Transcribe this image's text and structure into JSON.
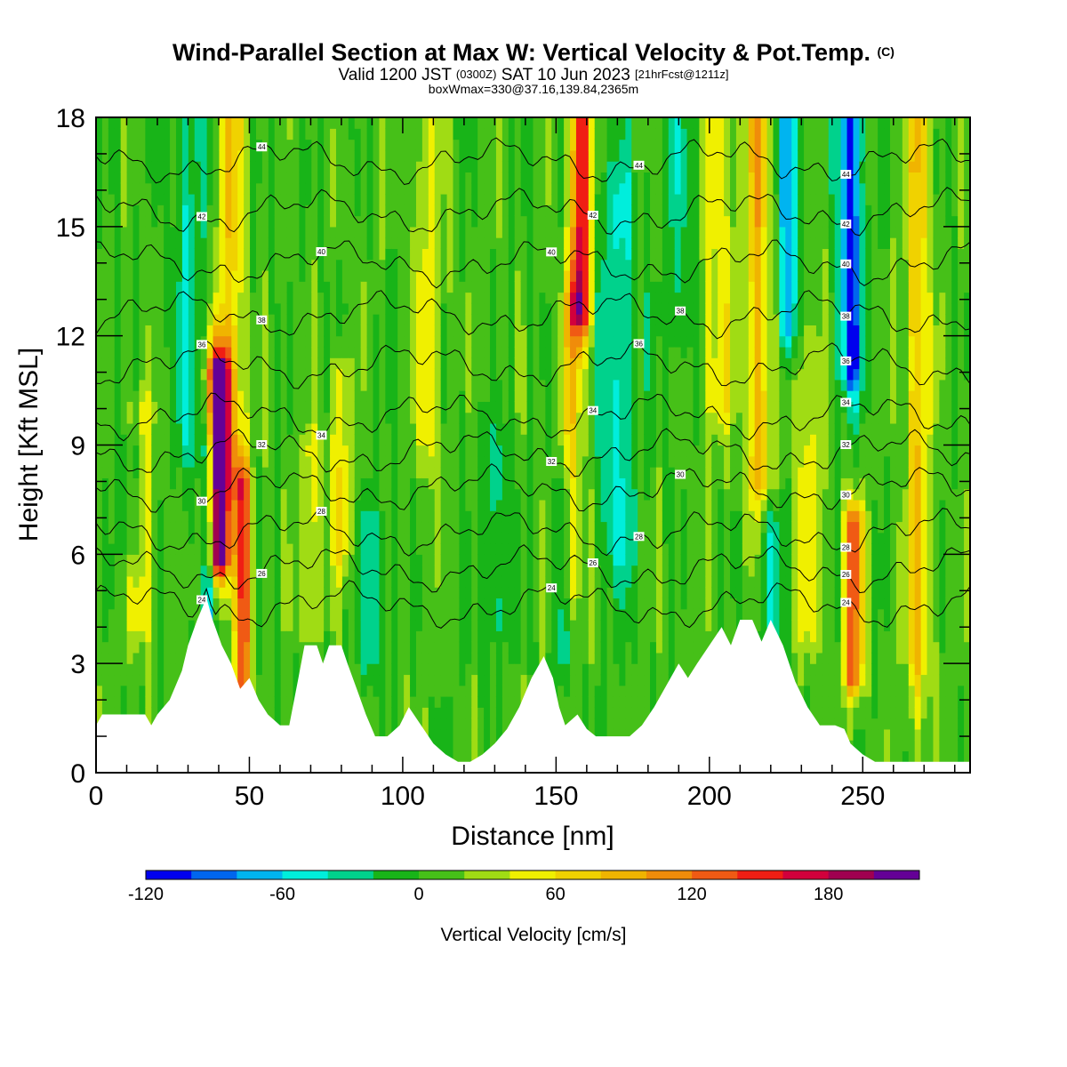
{
  "header": {
    "title_main": "Wind-Parallel Section at Max W: Vertical Velocity & Pot.Temp.",
    "title_mark": "(C)",
    "valid_prefix": "Valid 1200 JST",
    "valid_utc": "(0300Z)",
    "valid_date": "SAT 10 Jun 2023",
    "valid_fcst": "[21hrFcst@1211z]",
    "box_info": "boxWmax=330@37.16,139.84,2365m"
  },
  "chart_data": {
    "type": "heatmap",
    "xlabel": "Distance [nm]",
    "ylabel": "Height [Kft MSL]",
    "xlim": [
      0,
      285
    ],
    "ylim": [
      0,
      18
    ],
    "x_ticks": [
      0,
      50,
      100,
      150,
      200,
      250
    ],
    "y_ticks": [
      0,
      3,
      6,
      9,
      12,
      15,
      18
    ],
    "colorbar": {
      "title": "Vertical Velocity [cm/s]",
      "levels": [
        -120,
        -100,
        -80,
        -60,
        -40,
        -20,
        0,
        20,
        40,
        60,
        80,
        100,
        120,
        140,
        160,
        180,
        200,
        220
      ],
      "tick_values": [
        -120,
        -60,
        0,
        60,
        120,
        180
      ],
      "tick_labels": [
        "-120",
        "-60",
        "0",
        "60",
        "120",
        "180"
      ],
      "colors": [
        "#0000ee",
        "#0066ee",
        "#00b4f0",
        "#00eedc",
        "#00d28c",
        "#18b418",
        "#46c018",
        "#a0dc14",
        "#f0f000",
        "#f0d200",
        "#f0b400",
        "#f08c0a",
        "#f05a14",
        "#f01e14",
        "#d2003c",
        "#a00050",
        "#640096"
      ]
    },
    "terrain": [
      [
        0,
        1.3
      ],
      [
        2,
        1.6
      ],
      [
        16,
        1.6
      ],
      [
        18,
        1.3
      ],
      [
        20,
        1.6
      ],
      [
        24,
        2.0
      ],
      [
        28,
        2.8
      ],
      [
        30,
        3.5
      ],
      [
        33,
        4.2
      ],
      [
        36,
        4.8
      ],
      [
        38,
        4.2
      ],
      [
        41,
        3.5
      ],
      [
        44,
        3.0
      ],
      [
        47,
        2.3
      ],
      [
        50,
        2.6
      ],
      [
        53,
        2.0
      ],
      [
        56,
        1.6
      ],
      [
        60,
        1.3
      ],
      [
        63,
        1.3
      ],
      [
        66,
        2.6
      ],
      [
        68,
        3.5
      ],
      [
        72,
        3.5
      ],
      [
        74,
        3.0
      ],
      [
        76,
        3.5
      ],
      [
        80,
        3.5
      ],
      [
        82,
        3.0
      ],
      [
        85,
        2.3
      ],
      [
        88,
        1.6
      ],
      [
        91,
        1.0
      ],
      [
        95,
        1.0
      ],
      [
        99,
        1.3
      ],
      [
        102,
        1.8
      ],
      [
        106,
        1.3
      ],
      [
        110,
        0.8
      ],
      [
        114,
        0.5
      ],
      [
        118,
        0.3
      ],
      [
        122,
        0.3
      ],
      [
        126,
        0.5
      ],
      [
        130,
        0.8
      ],
      [
        134,
        1.2
      ],
      [
        138,
        1.8
      ],
      [
        142,
        2.6
      ],
      [
        146,
        3.2
      ],
      [
        149,
        2.6
      ],
      [
        151,
        1.8
      ],
      [
        153,
        1.3
      ],
      [
        157,
        1.6
      ],
      [
        160,
        1.2
      ],
      [
        163,
        1.0
      ],
      [
        168,
        1.0
      ],
      [
        174,
        1.0
      ],
      [
        178,
        1.3
      ],
      [
        182,
        1.8
      ],
      [
        186,
        2.4
      ],
      [
        190,
        3.0
      ],
      [
        193,
        2.6
      ],
      [
        196,
        3.0
      ],
      [
        200,
        3.5
      ],
      [
        204,
        4.0
      ],
      [
        207,
        3.5
      ],
      [
        210,
        4.2
      ],
      [
        214,
        4.2
      ],
      [
        217,
        3.6
      ],
      [
        220,
        4.2
      ],
      [
        224,
        3.5
      ],
      [
        226,
        3.0
      ],
      [
        228,
        2.5
      ],
      [
        232,
        1.8
      ],
      [
        236,
        1.3
      ],
      [
        241,
        1.3
      ],
      [
        244,
        1.2
      ],
      [
        246,
        0.8
      ],
      [
        250,
        0.5
      ],
      [
        254,
        0.3
      ],
      [
        260,
        0.3
      ],
      [
        266,
        0.3
      ],
      [
        272,
        0.3
      ],
      [
        278,
        0.3
      ],
      [
        285,
        0.3
      ]
    ],
    "contours": [
      {
        "label": "24",
        "y0": 4.6,
        "phase": 0.5
      },
      {
        "label": "26",
        "y0": 5.6,
        "phase": 1.2
      },
      {
        "label": "28",
        "y0": 6.6,
        "phase": 2.0
      },
      {
        "label": "30",
        "y0": 7.8,
        "phase": 2.7
      },
      {
        "label": "32",
        "y0": 8.8,
        "phase": 3.3
      },
      {
        "label": "34",
        "y0": 9.8,
        "phase": 4.1
      },
      {
        "label": "36",
        "y0": 11.2,
        "phase": 4.8
      },
      {
        "label": "38",
        "y0": 12.6,
        "phase": 5.5
      },
      {
        "label": "40",
        "y0": 14.0,
        "phase": 0.9
      },
      {
        "label": "42",
        "y0": 15.4,
        "phase": 1.6
      },
      {
        "label": "44",
        "y0": 16.8,
        "phase": 2.3
      }
    ],
    "updrafts": [
      {
        "x": 40,
        "w": 3.5,
        "amp": 220,
        "y0": 5.8,
        "y1": 11.2
      },
      {
        "x": 48,
        "w": 2.5,
        "amp": 140,
        "y0": 2.0,
        "y1": 8.0
      },
      {
        "x": 44,
        "w": 4,
        "amp": 70,
        "y0": 8.0,
        "y1": 18.0
      },
      {
        "x": 158,
        "w": 3.0,
        "amp": 170,
        "y0": 12.5,
        "y1": 18.0
      },
      {
        "x": 155,
        "w": 4,
        "amp": 60,
        "y0": 5.0,
        "y1": 13.0
      },
      {
        "x": 247,
        "w": 3.0,
        "amp": 130,
        "y0": 2.5,
        "y1": 7.0
      },
      {
        "x": 216,
        "w": 4,
        "amp": 80,
        "y0": 8.0,
        "y1": 18.0
      },
      {
        "x": 203,
        "w": 5,
        "amp": 50,
        "y0": 10.0,
        "y1": 18.0
      },
      {
        "x": 80,
        "w": 3,
        "amp": 55,
        "y0": 6.0,
        "y1": 11.0
      },
      {
        "x": 268,
        "w": 4,
        "amp": 70,
        "y0": 3.0,
        "y1": 18.0
      },
      {
        "x": 15,
        "w": 4,
        "amp": 45,
        "y0": 4.0,
        "y1": 10.0
      },
      {
        "x": 70,
        "w": 4,
        "amp": 40,
        "y0": 4.0,
        "y1": 9.0
      },
      {
        "x": 108,
        "w": 5,
        "amp": 40,
        "y0": 9.0,
        "y1": 18.0
      },
      {
        "x": 232,
        "w": 5,
        "amp": 40,
        "y0": 4.0,
        "y1": 12.0
      }
    ],
    "downdrafts": [
      {
        "x": 246,
        "w": 3.5,
        "amp": -120,
        "y0": 11.0,
        "y1": 18.0
      },
      {
        "x": 226,
        "w": 3.5,
        "amp": -80,
        "y0": 12.0,
        "y1": 18.0
      },
      {
        "x": 37,
        "w": 3.0,
        "amp": -60,
        "y0": 3.5,
        "y1": 9.0
      },
      {
        "x": 170,
        "w": 6,
        "amp": -50,
        "y0": 6.0,
        "y1": 16.0
      },
      {
        "x": 30,
        "w": 5,
        "amp": -40,
        "y0": 9.0,
        "y1": 18.0
      },
      {
        "x": 152,
        "w": 3,
        "amp": -45,
        "y0": 3.0,
        "y1": 8.0
      },
      {
        "x": 220,
        "w": 4,
        "amp": -45,
        "y0": 3.0,
        "y1": 7.0
      },
      {
        "x": 90,
        "w": 5,
        "amp": -35,
        "y0": 3.0,
        "y1": 7.0
      },
      {
        "x": 130,
        "w": 5,
        "amp": -35,
        "y0": 4.0,
        "y1": 9.0
      },
      {
        "x": 12,
        "w": 4,
        "amp": -35,
        "y0": 6.0,
        "y1": 9.0
      },
      {
        "x": 190,
        "w": 6,
        "amp": -30,
        "y0": 12.0,
        "y1": 18.0
      }
    ]
  }
}
